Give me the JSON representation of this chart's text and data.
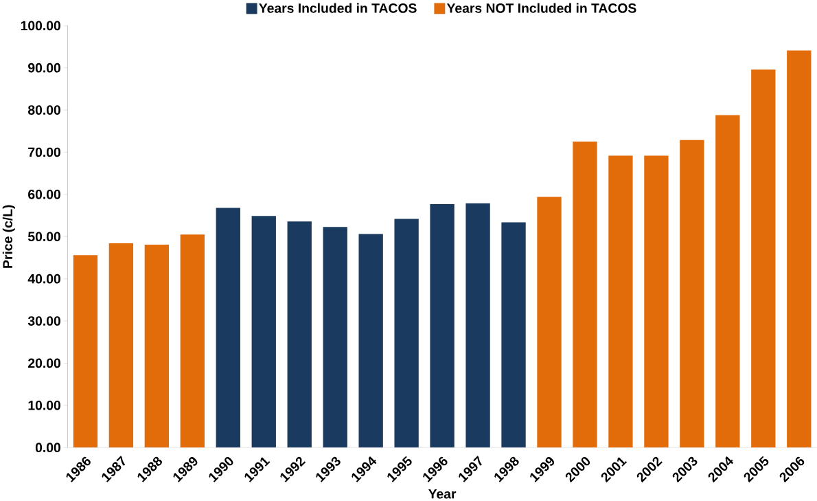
{
  "chart_data": {
    "type": "bar",
    "xlabel": "Year",
    "ylabel": "Price (c/L)",
    "categories": [
      "1986",
      "1987",
      "1988",
      "1989",
      "1990",
      "1991",
      "1992",
      "1993",
      "1994",
      "1995",
      "1996",
      "1997",
      "1998",
      "1999",
      "2000",
      "2001",
      "2002",
      "2003",
      "2004",
      "2005",
      "2006"
    ],
    "series": [
      {
        "name": "Years Included in TACOS",
        "color": "#1b3a5f",
        "values": [
          null,
          null,
          null,
          null,
          56.8,
          54.9,
          53.6,
          52.3,
          50.6,
          54.2,
          57.7,
          57.9,
          53.4,
          null,
          null,
          null,
          null,
          null,
          null,
          null,
          null
        ]
      },
      {
        "name": "Years NOT Included in TACOS",
        "color": "#e36c0a",
        "values": [
          45.6,
          48.4,
          48.1,
          50.5,
          null,
          null,
          null,
          null,
          null,
          null,
          null,
          null,
          null,
          59.4,
          72.5,
          69.2,
          69.2,
          72.9,
          78.8,
          89.6,
          94.1
        ]
      }
    ],
    "ylim": [
      0,
      100
    ],
    "yticks": [
      {
        "value": 0,
        "label": "0.00"
      },
      {
        "value": 10,
        "label": "10.00"
      },
      {
        "value": 20,
        "label": "20.00"
      },
      {
        "value": 30,
        "label": "30.00"
      },
      {
        "value": 40,
        "label": "40.00"
      },
      {
        "value": 50,
        "label": "50.00"
      },
      {
        "value": 60,
        "label": "60.00"
      },
      {
        "value": 70,
        "label": "70.00"
      },
      {
        "value": 80,
        "label": "80.00"
      },
      {
        "value": 90,
        "label": "90.00"
      },
      {
        "value": 100,
        "label": "100.00"
      }
    ],
    "legend": "top",
    "grid": false
  }
}
